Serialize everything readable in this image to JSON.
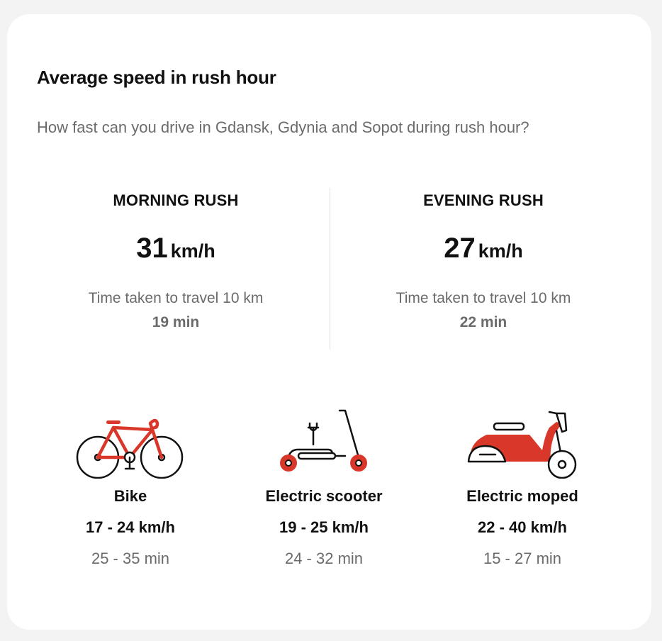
{
  "card": {
    "title": "Average speed in rush hour",
    "subtitle": "How fast can you drive in Gdansk, Gdynia and Sopot during rush hour?"
  },
  "rush": [
    {
      "label": "MORNING RUSH",
      "speed": "31",
      "unit": "km/h",
      "travel_label": "Time taken to travel 10 km",
      "travel_time": "19 min"
    },
    {
      "label": "EVENING RUSH",
      "speed": "27",
      "unit": "km/h",
      "travel_label": "Time taken to travel 10 km",
      "travel_time": "22 min"
    }
  ],
  "vehicles": [
    {
      "name": "Bike",
      "speed": "17 - 24 km/h",
      "time": "25 - 35 min",
      "icon": "bike-icon"
    },
    {
      "name": "Electric scooter",
      "speed": "19 - 25 km/h",
      "time": "24 - 32 min",
      "icon": "electric-scooter-icon"
    },
    {
      "name": "Electric moped",
      "speed": "22 - 40 km/h",
      "time": "15 - 27 min",
      "icon": "electric-moped-icon"
    }
  ],
  "colors": {
    "accent": "#d9372a",
    "text": "#111111",
    "muted": "#6b6b6b",
    "divider": "#e0e0e0"
  }
}
